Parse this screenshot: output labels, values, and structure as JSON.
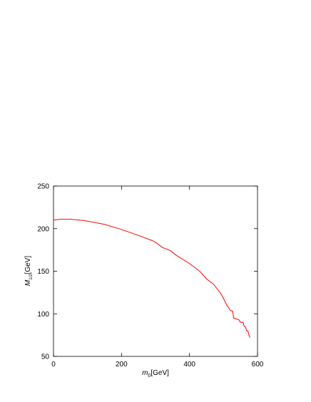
{
  "chart_data": {
    "type": "line",
    "xlabel": [
      "m",
      "0",
      "[GeV]"
    ],
    "ylabel": [
      "M",
      "1/2",
      "[GeV]"
    ],
    "x": [
      0,
      20,
      50,
      90,
      150,
      200,
      250,
      290,
      300,
      320,
      345,
      360,
      400,
      430,
      450,
      470,
      490,
      500,
      510,
      520,
      527,
      530,
      545,
      550,
      558,
      560,
      565,
      568,
      572,
      574,
      576,
      578
    ],
    "series": [
      {
        "color": "#ff0000",
        "values": [
          210,
          211,
          211,
          209.5,
          205,
          199,
          192,
          186,
          184,
          178,
          174,
          169,
          159,
          150,
          141,
          135,
          125,
          118,
          110,
          104,
          103,
          95,
          93,
          90,
          90,
          86,
          84,
          80,
          80,
          76,
          74,
          72
        ]
      }
    ],
    "xlim": [
      0,
      600
    ],
    "ylim": [
      50,
      250
    ],
    "xticks": [
      0,
      200,
      400,
      600
    ],
    "yticks": [
      50,
      100,
      150,
      200,
      250
    ]
  }
}
